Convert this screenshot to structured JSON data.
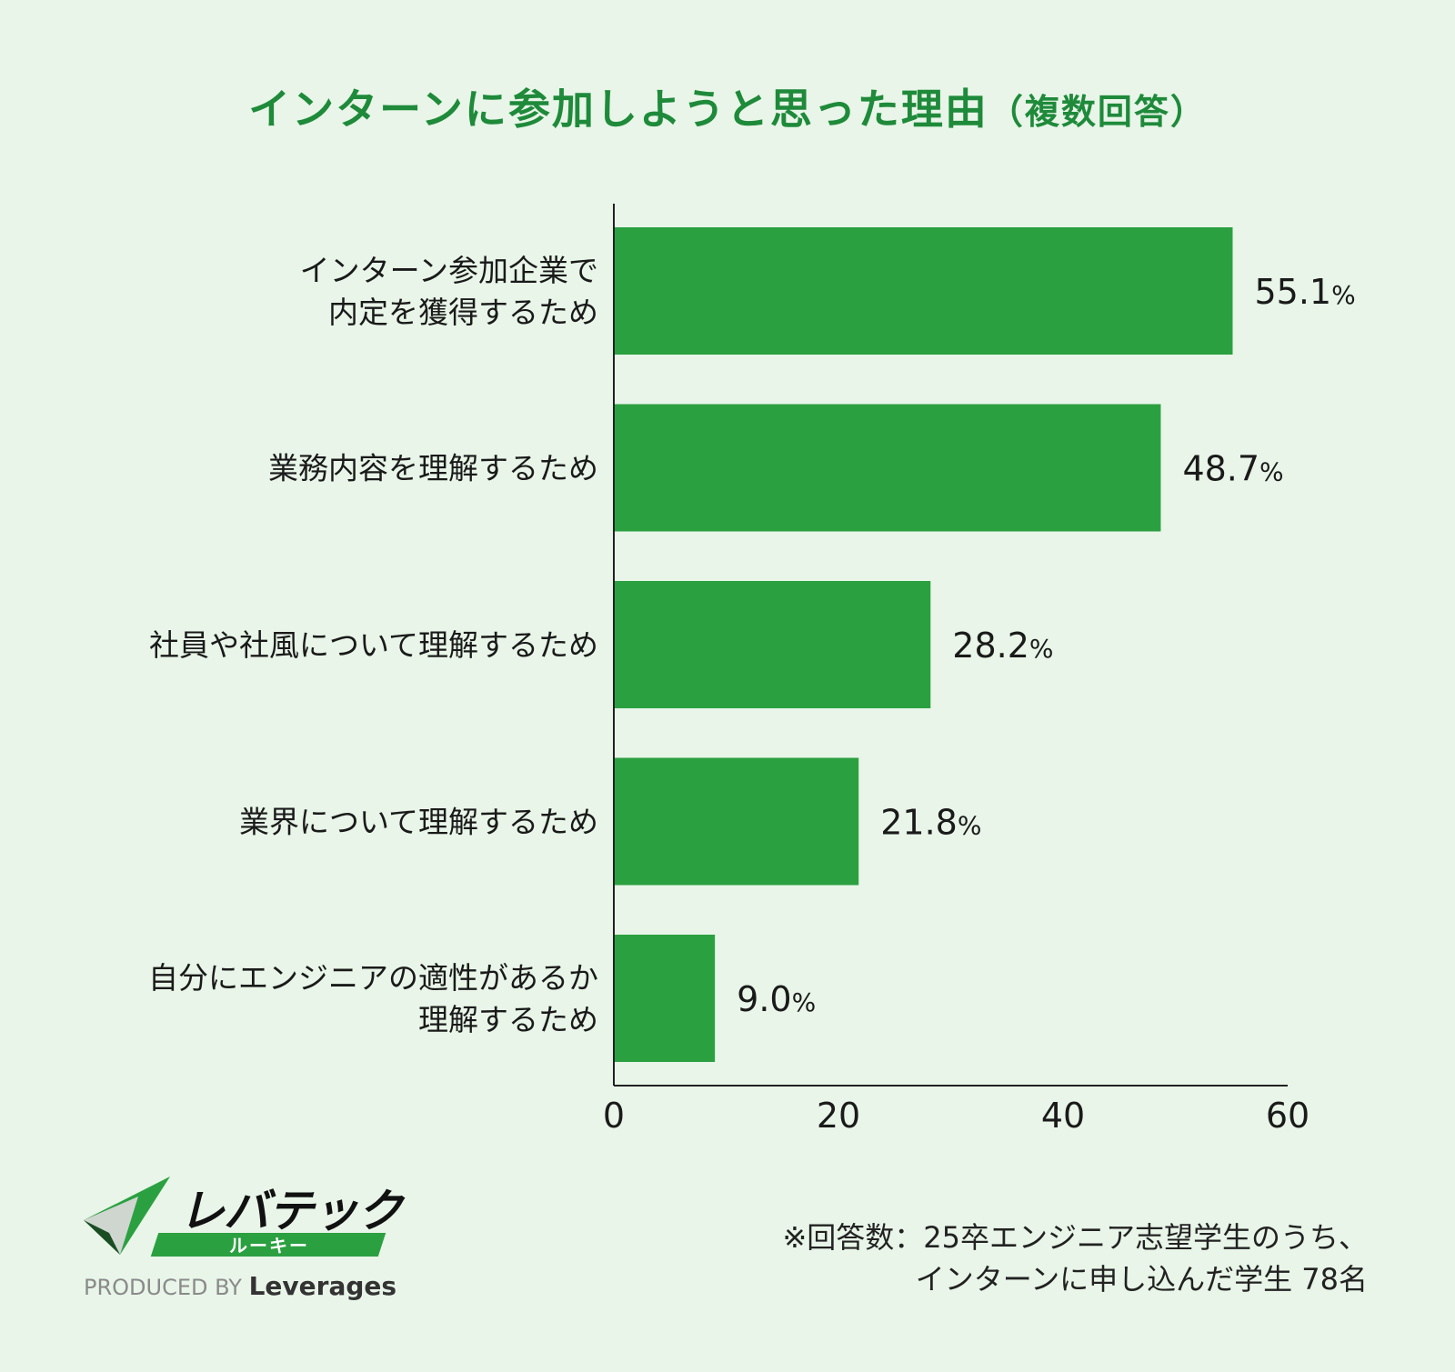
{
  "title": {
    "main": "インターンに参加しようと思った理由",
    "paren": "（複数回答）"
  },
  "chart_data": {
    "type": "bar",
    "orientation": "horizontal",
    "categories": [
      [
        "インターン参加企業で",
        "内定を獲得するため"
      ],
      [
        "業務内容を理解するため"
      ],
      [
        "社員や社風について理解するため"
      ],
      [
        "業界について理解するため"
      ],
      [
        "自分にエンジニアの適性があるか",
        "理解するため"
      ]
    ],
    "values": [
      55.1,
      48.7,
      28.2,
      21.8,
      9.0
    ],
    "value_labels": [
      "55.1",
      "48.7",
      "28.2",
      "21.8",
      "9.0"
    ],
    "value_suffix": "%",
    "xlim": [
      0,
      60
    ],
    "xticks": [
      "0",
      "20",
      "40",
      "60"
    ],
    "grid": false,
    "bar_color": "#2ba040"
  },
  "footnote": {
    "line1": "※回答数：25卒エンジニア志望学生のうち、",
    "line2": "インターンに申し込んだ学生 78名"
  },
  "logo": {
    "name": "レバテック",
    "sub": "ルーキー",
    "produced_by": "PRODUCED BY",
    "brand": "Leverages"
  },
  "colors": {
    "background": "#e8f5e8",
    "title": "#1e8a3a",
    "bar": "#2ba040",
    "text": "#1a1a1a"
  }
}
